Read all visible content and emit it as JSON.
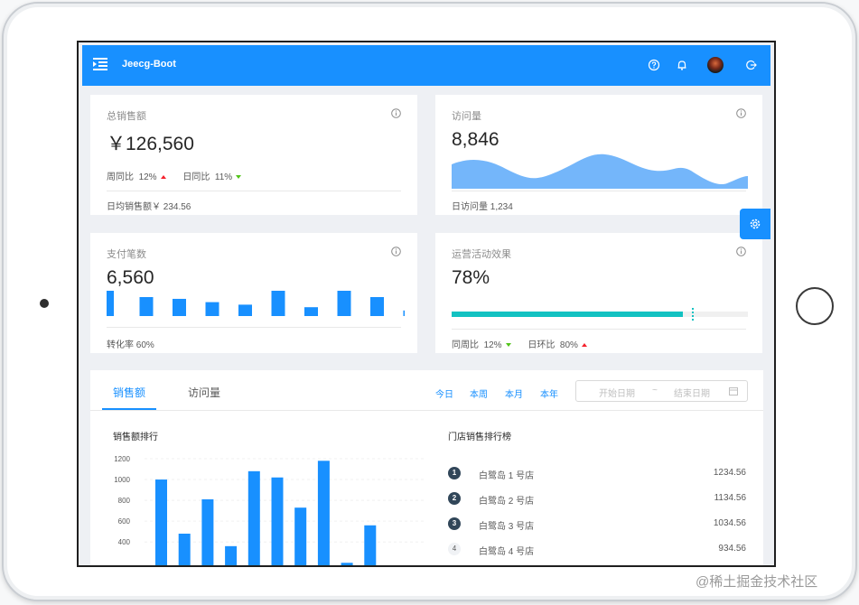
{
  "app": {
    "title": "Jeecg-Boot"
  },
  "colors": {
    "primary": "#1890ff",
    "area": "#74b6fa",
    "progress": "#13c2c2"
  },
  "cards": {
    "sales": {
      "label": "总销售额",
      "value": "￥126,560",
      "week_label": "周同比",
      "week_value": "12%",
      "day_label": "日同比",
      "day_value": "11%",
      "footer": "日均销售额￥ 234.56"
    },
    "visits": {
      "label": "访问量",
      "value": "8,846",
      "footer": "日访问量 1,234"
    },
    "payments": {
      "label": "支付笔数",
      "value": "6,560",
      "footer": "转化率 60%",
      "mini_bars": [
        1.0,
        0.75,
        0.68,
        0.55,
        0.45,
        1.0,
        0.35,
        1.0,
        0.75,
        0.22
      ]
    },
    "activity": {
      "label": "运营活动效果",
      "value": "78%",
      "progress": 78,
      "week_label": "同周比",
      "week_value": "12%",
      "day_label": "日环比",
      "day_value": "80%"
    }
  },
  "sales_panel": {
    "tabs": [
      "销售额",
      "访问量"
    ],
    "ranges": [
      "今日",
      "本周",
      "本月",
      "本年"
    ],
    "start_placeholder": "开始日期",
    "separator": "~",
    "end_placeholder": "结束日期",
    "chart_title": "销售额排行",
    "ranking_title": "门店销售排行榜",
    "ranking": [
      {
        "rank": "1",
        "name": "白鹭岛 1 号店",
        "value": "1234.56"
      },
      {
        "rank": "2",
        "name": "白鹭岛 2 号店",
        "value": "1134.56"
      },
      {
        "rank": "3",
        "name": "白鹭岛 3 号店",
        "value": "1034.56"
      },
      {
        "rank": "4",
        "name": "白鹭岛 4 号店",
        "value": "934.56"
      }
    ]
  },
  "chart_data": {
    "type": "bar",
    "title": "销售额排行",
    "xlabel": "",
    "ylabel": "",
    "yticks": [
      "1200",
      "1000",
      "800",
      "600",
      "400"
    ],
    "ylim": [
      300,
      1200
    ],
    "values": [
      1000,
      480,
      810,
      360,
      1080,
      1020,
      730,
      1180,
      200,
      560
    ]
  },
  "watermark": "@稀土掘金技术社区"
}
